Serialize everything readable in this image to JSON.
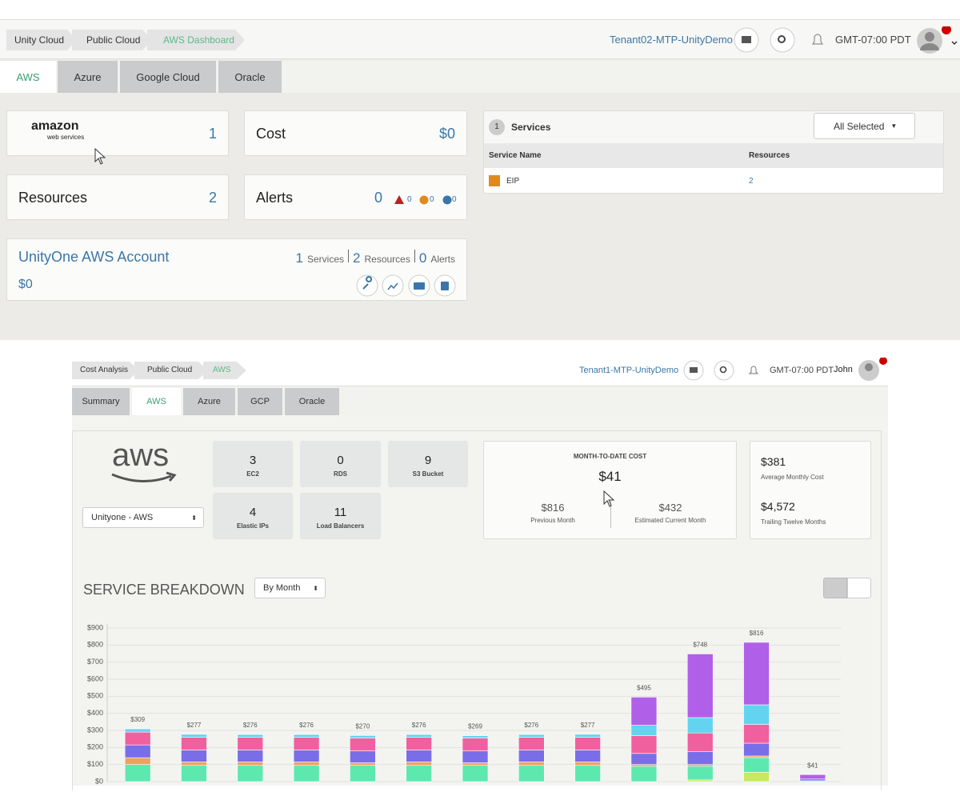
{
  "top": {
    "breadcrumb": [
      "Unity Cloud",
      "Public Cloud",
      "AWS Dashboard"
    ],
    "tenant": "Tenant02-MTP-UnityDemo",
    "timezone": "GMT-07:00 PDT",
    "tabs": [
      "AWS",
      "Azure",
      "Google Cloud",
      "Oracle"
    ],
    "provider_card": {
      "logo_top": "amazon",
      "logo_bottom": "web services",
      "value": "1"
    },
    "cost_card": {
      "label": "Cost",
      "value": "$0"
    },
    "resources_card": {
      "label": "Resources",
      "value": "2"
    },
    "alerts_card": {
      "label": "Alerts",
      "value": "0",
      "counts": [
        "0",
        "0",
        "0"
      ]
    },
    "account": {
      "name": "UnityOne AWS Account",
      "cost": "$0",
      "services": "1",
      "services_label": "Services",
      "resources": "2",
      "resources_label": "Resources",
      "alerts": "0",
      "alerts_label": "Alerts"
    },
    "services_panel": {
      "count": "1",
      "title": "Services",
      "filter": "All Selected",
      "columns": [
        "Service Name",
        "Resources"
      ],
      "rows": [
        [
          "EIP",
          "2"
        ]
      ]
    }
  },
  "bottom": {
    "breadcrumb": [
      "Cost Analysis",
      "Public Cloud",
      "AWS"
    ],
    "tenant": "Tenant1-MTP-UnityDemo",
    "timezone": "GMT-07:00 PDT",
    "user": "John",
    "tabs": [
      "Summary",
      "AWS",
      "Azure",
      "GCP",
      "Oracle"
    ],
    "logo": "aws",
    "account_select": "Unityone - AWS",
    "tiles": [
      {
        "value": "3",
        "label": "EC2"
      },
      {
        "value": "0",
        "label": "RDS"
      },
      {
        "value": "9",
        "label": "S3 Bucket"
      },
      {
        "value": "4",
        "label": "Elastic IPs"
      },
      {
        "value": "11",
        "label": "Load Balancers"
      }
    ],
    "month_to_date": {
      "label": "MONTH-TO-DATE COST",
      "value": "$41",
      "previous": "$816",
      "previous_label": "Previous Month",
      "estimated": "$432",
      "estimated_label": "Estimated Current Month"
    },
    "averages": [
      {
        "value": "$381",
        "label": "Average Monthly Cost"
      },
      {
        "value": "$4,572",
        "label": "Trailing Twelve Months"
      }
    ],
    "breakdown_title": "SERVICE BREAKDOWN",
    "period_select": "By Month"
  },
  "chart_data": {
    "type": "bar",
    "stacked": true,
    "grid": true,
    "categories": [
      null,
      null,
      null,
      null,
      null,
      null,
      null,
      null,
      null,
      null,
      null,
      null,
      null
    ],
    "series": [
      {
        "color": "#c8e860",
        "values": [
          0,
          0,
          0,
          0,
          0,
          0,
          0,
          0,
          0,
          0,
          10,
          55,
          0
        ]
      },
      {
        "color": "#5de8b0",
        "values": [
          100,
          95,
          95,
          95,
          95,
          95,
          95,
          95,
          95,
          90,
          80,
          85,
          5
        ]
      },
      {
        "color": "#f0a060",
        "values": [
          40,
          20,
          20,
          20,
          15,
          20,
          15,
          20,
          20,
          10,
          10,
          10,
          0
        ]
      },
      {
        "color": "#7a6ee8",
        "values": [
          75,
          70,
          70,
          70,
          70,
          70,
          70,
          70,
          70,
          65,
          75,
          75,
          10
        ]
      },
      {
        "color": "#f0609e",
        "values": [
          75,
          75,
          75,
          75,
          75,
          75,
          75,
          75,
          75,
          105,
          110,
          110,
          0
        ]
      },
      {
        "color": "#62d4f0",
        "values": [
          19,
          17,
          16,
          16,
          15,
          16,
          14,
          16,
          17,
          60,
          90,
          115,
          0
        ]
      },
      {
        "color": "#b060e8",
        "values": [
          0,
          0,
          0,
          0,
          0,
          0,
          0,
          0,
          0,
          165,
          373,
          366,
          26
        ]
      }
    ],
    "totals": [
      309,
      277,
      276,
      276,
      270,
      276,
      269,
      276,
      277,
      495,
      748,
      816,
      41
    ],
    "total_labels": [
      "$309",
      "$277",
      "$276",
      "$276",
      "$270",
      "$276",
      "$269",
      "$276",
      "$277",
      "$495",
      "$748",
      "$816",
      "$41"
    ],
    "ylim": [
      0,
      900
    ],
    "yticks": [
      {
        "value": 0,
        "label": "$0"
      },
      {
        "value": 100,
        "label": "$100"
      },
      {
        "value": 200,
        "label": "$200"
      },
      {
        "value": 300,
        "label": "$300"
      },
      {
        "value": 400,
        "label": "$400"
      },
      {
        "value": 500,
        "label": "$500"
      },
      {
        "value": 600,
        "label": "$600"
      },
      {
        "value": 700,
        "label": "$700"
      },
      {
        "value": 800,
        "label": "$800"
      },
      {
        "value": 900,
        "label": "$900"
      }
    ]
  }
}
